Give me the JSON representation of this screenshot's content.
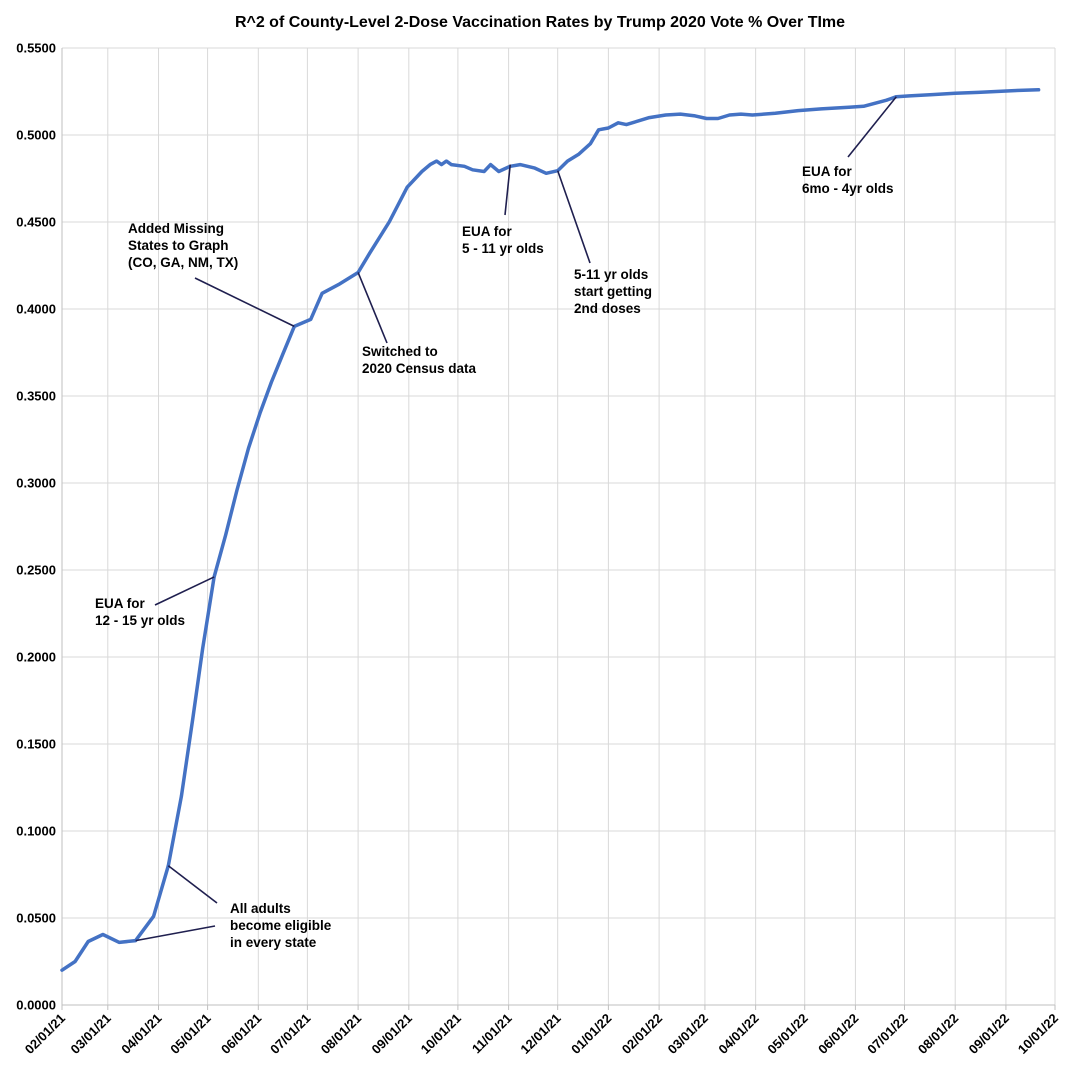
{
  "chart_data": {
    "type": "line",
    "title": "R^2 of County-Level 2-Dose Vaccination Rates by Trump 2020 Vote % Over TIme",
    "xlabel": "",
    "ylabel": "",
    "x_axis": {
      "type": "date",
      "range": [
        "2021-02-01",
        "2022-10-01"
      ],
      "tick_labels": [
        "02/01/21",
        "03/01/21",
        "04/01/21",
        "05/01/21",
        "06/01/21",
        "07/01/21",
        "08/01/21",
        "09/01/21",
        "10/01/21",
        "11/01/21",
        "12/01/21",
        "01/01/22",
        "02/01/22",
        "03/01/22",
        "04/01/22",
        "05/01/22",
        "06/01/22",
        "07/01/22",
        "08/01/22",
        "09/01/22",
        "10/01/22"
      ]
    },
    "y_axis": {
      "range": [
        0,
        0.55
      ],
      "tick_labels": [
        "0.0000",
        "0.0500",
        "0.1000",
        "0.1500",
        "0.2000",
        "0.2500",
        "0.3000",
        "0.3500",
        "0.4000",
        "0.4500",
        "0.5000",
        "0.5500"
      ]
    },
    "grid": true,
    "legend": "none",
    "line_color": "#4472C4",
    "annotation_line_color": "#1F1F4F",
    "series": [
      {
        "points": [
          [
            "2021-02-01",
            0.02
          ],
          [
            "2021-02-09",
            0.025
          ],
          [
            "2021-02-17",
            0.0365
          ],
          [
            "2021-02-26",
            0.0405
          ],
          [
            "2021-03-08",
            0.036
          ],
          [
            "2021-03-18",
            0.037
          ],
          [
            "2021-03-29",
            0.051
          ],
          [
            "2021-04-07",
            0.08
          ],
          [
            "2021-04-15",
            0.12
          ],
          [
            "2021-04-22",
            0.165
          ],
          [
            "2021-04-28",
            0.205
          ],
          [
            "2021-05-05",
            0.246
          ],
          [
            "2021-05-12",
            0.27
          ],
          [
            "2021-05-19",
            0.296
          ],
          [
            "2021-05-26",
            0.32
          ],
          [
            "2021-06-02",
            0.34
          ],
          [
            "2021-06-09",
            0.358
          ],
          [
            "2021-06-16",
            0.374
          ],
          [
            "2021-06-23",
            0.39
          ],
          [
            "2021-07-03",
            0.394
          ],
          [
            "2021-07-10",
            0.409
          ],
          [
            "2021-07-20",
            0.414
          ],
          [
            "2021-08-01",
            0.421
          ],
          [
            "2021-08-08",
            0.432
          ],
          [
            "2021-08-20",
            0.45
          ],
          [
            "2021-08-31",
            0.47
          ],
          [
            "2021-09-09",
            0.479
          ],
          [
            "2021-09-14",
            0.483
          ],
          [
            "2021-09-18",
            0.485
          ],
          [
            "2021-09-21",
            0.483
          ],
          [
            "2021-09-24",
            0.485
          ],
          [
            "2021-09-27",
            0.483
          ],
          [
            "2021-10-05",
            0.482
          ],
          [
            "2021-10-10",
            0.48
          ],
          [
            "2021-10-17",
            0.479
          ],
          [
            "2021-10-21",
            0.483
          ],
          [
            "2021-10-26",
            0.479
          ],
          [
            "2021-11-02",
            0.482
          ],
          [
            "2021-11-08",
            0.483
          ],
          [
            "2021-11-17",
            0.481
          ],
          [
            "2021-11-24",
            0.478
          ],
          [
            "2021-12-01",
            0.4795
          ],
          [
            "2021-12-07",
            0.485
          ],
          [
            "2021-12-14",
            0.489
          ],
          [
            "2021-12-21",
            0.495
          ],
          [
            "2021-12-26",
            0.503
          ],
          [
            "2022-01-01",
            0.504
          ],
          [
            "2022-01-07",
            0.507
          ],
          [
            "2022-01-12",
            0.506
          ],
          [
            "2022-01-26",
            0.51
          ],
          [
            "2022-02-05",
            0.5115
          ],
          [
            "2022-02-14",
            0.512
          ],
          [
            "2022-02-23",
            0.511
          ],
          [
            "2022-03-02",
            0.5095
          ],
          [
            "2022-03-09",
            0.5095
          ],
          [
            "2022-03-16",
            0.5115
          ],
          [
            "2022-03-23",
            0.512
          ],
          [
            "2022-03-30",
            0.5115
          ],
          [
            "2022-04-13",
            0.5125
          ],
          [
            "2022-04-27",
            0.514
          ],
          [
            "2022-05-11",
            0.515
          ],
          [
            "2022-05-28",
            0.516
          ],
          [
            "2022-06-06",
            0.5165
          ],
          [
            "2022-06-20",
            0.52
          ],
          [
            "2022-06-26",
            0.522
          ],
          [
            "2022-07-04",
            0.5225
          ],
          [
            "2022-07-18",
            0.5232
          ],
          [
            "2022-08-01",
            0.524
          ],
          [
            "2022-08-15",
            0.5245
          ],
          [
            "2022-09-06",
            0.5255
          ],
          [
            "2022-09-21",
            0.526
          ]
        ]
      }
    ],
    "annotations": [
      {
        "lines": [
          "EUA for",
          "12 - 15 yr olds"
        ],
        "date": "2021-05-05",
        "value": 0.246
      },
      {
        "lines": [
          "All adults",
          "become eligible",
          "in every state"
        ],
        "date": "2021-04-07",
        "value": 0.08
      },
      {
        "lines": [
          "Added Missing",
          "States to Graph",
          "(CO, GA, NM, TX)"
        ],
        "date": "2021-06-23",
        "value": 0.39
      },
      {
        "lines": [
          "Switched to",
          "2020 Census data"
        ],
        "date": "2021-08-01",
        "value": 0.421
      },
      {
        "lines": [
          "EUA for",
          "5 - 11 yr olds"
        ],
        "date": "2021-11-02",
        "value": 0.483
      },
      {
        "lines": [
          "5-11 yr olds",
          "start getting",
          "2nd doses"
        ],
        "date": "2021-12-01",
        "value": 0.4795
      },
      {
        "lines": [
          "EUA for",
          "6mo - 4yr olds"
        ],
        "date": "2022-06-26",
        "value": 0.522
      }
    ]
  }
}
